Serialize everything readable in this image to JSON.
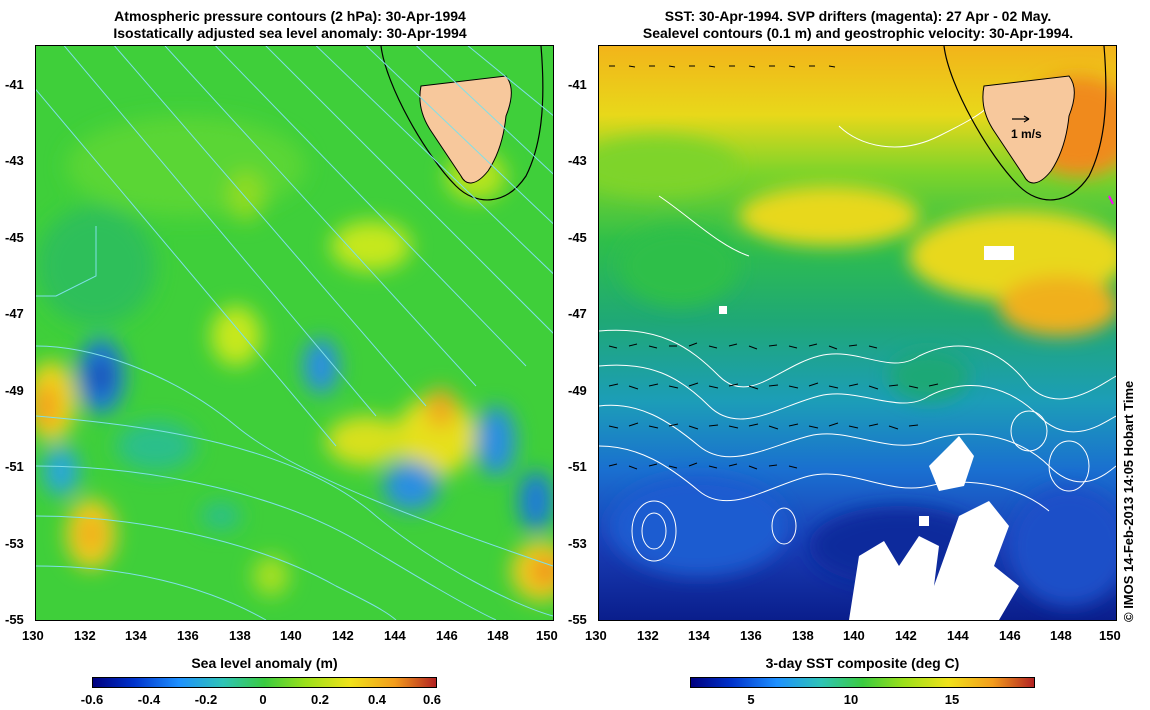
{
  "left_panel": {
    "title_line1": "Atmospheric pressure contours (2 hPa): 30-Apr-1994",
    "title_line2": "Isostatically adjusted sea level anomaly: 30-Apr-1994",
    "y_ticks": [
      "-41",
      "-43",
      "-45",
      "-47",
      "-49",
      "-51",
      "-53",
      "-55"
    ],
    "x_ticks": [
      "130",
      "132",
      "134",
      "136",
      "138",
      "140",
      "142",
      "144",
      "146",
      "148",
      "150"
    ],
    "colorbar_title": "Sea level anomaly (m)",
    "colorbar_ticks": [
      "-0.6",
      "-0.4",
      "-0.2",
      "0",
      "0.2",
      "0.4",
      "0.6"
    ]
  },
  "right_panel": {
    "title_line1": "SST: 30-Apr-1994. SVP drifters (magenta): 27 Apr - 02 May.",
    "title_line2": "Sealevel contours (0.1 m) and geostrophic velocity: 30-Apr-1994.",
    "y_ticks": [
      "-41",
      "-43",
      "-45",
      "-47",
      "-49",
      "-51",
      "-53",
      "-55"
    ],
    "x_ticks": [
      "130",
      "132",
      "134",
      "136",
      "138",
      "140",
      "142",
      "144",
      "146",
      "148",
      "150"
    ],
    "velocity_scale_label": "1 m/s",
    "colorbar_title": "3-day SST composite (deg C)",
    "colorbar_ticks": [
      "5",
      "10",
      "15"
    ]
  },
  "credit": "© IMOS 14-Feb-2013 14:05 Hobart Time",
  "colors": {
    "land": "#f7c89c",
    "pressure_contour": "#7fe0e8",
    "sealevel_contour": "#ffffff",
    "drifter": "#ff00ff"
  }
}
